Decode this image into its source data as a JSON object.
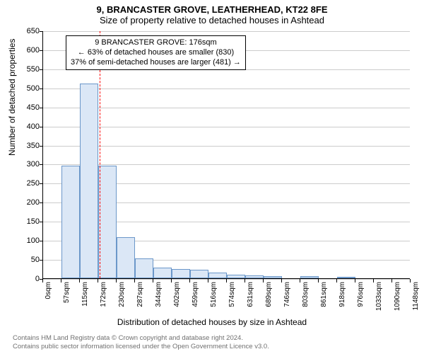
{
  "title_line1": "9, BRANCASTER GROVE, LEATHERHEAD, KT22 8FE",
  "title_line2": "Size of property relative to detached houses in Ashtead",
  "ylabel": "Number of detached properties",
  "xlabel": "Distribution of detached houses by size in Ashtead",
  "chart": {
    "type": "histogram",
    "ylim": [
      0,
      650
    ],
    "yticks": [
      0,
      50,
      100,
      150,
      200,
      250,
      300,
      350,
      400,
      450,
      500,
      550,
      600,
      650
    ],
    "xticks": [
      "0sqm",
      "57sqm",
      "115sqm",
      "172sqm",
      "230sqm",
      "287sqm",
      "344sqm",
      "402sqm",
      "459sqm",
      "516sqm",
      "574sqm",
      "631sqm",
      "689sqm",
      "746sqm",
      "803sqm",
      "861sqm",
      "918sqm",
      "976sqm",
      "1033sqm",
      "1090sqm",
      "1148sqm"
    ],
    "values": [
      0,
      295,
      510,
      295,
      108,
      52,
      28,
      24,
      22,
      14,
      10,
      8,
      5,
      0,
      5,
      0,
      4,
      0,
      0,
      0
    ],
    "bar_fill": "#dbe7f6",
    "bar_stroke": "#6b97c9",
    "bar_stroke_width": 1,
    "grid_color": "#cccccc",
    "background": "#ffffff",
    "reference_line": {
      "x_value": 176,
      "x_min": 0,
      "x_max": 1148,
      "color": "#ff0000",
      "dash": "3,3",
      "width": 1
    },
    "annotation": {
      "lines": [
        "9 BRANCASTER GROVE: 176sqm",
        "← 63% of detached houses are smaller (830)",
        "37% of semi-detached houses are larger (481) →"
      ]
    }
  },
  "footer_line1": "Contains HM Land Registry data © Crown copyright and database right 2024.",
  "footer_line2": "Contains public sector information licensed under the Open Government Licence v3.0."
}
